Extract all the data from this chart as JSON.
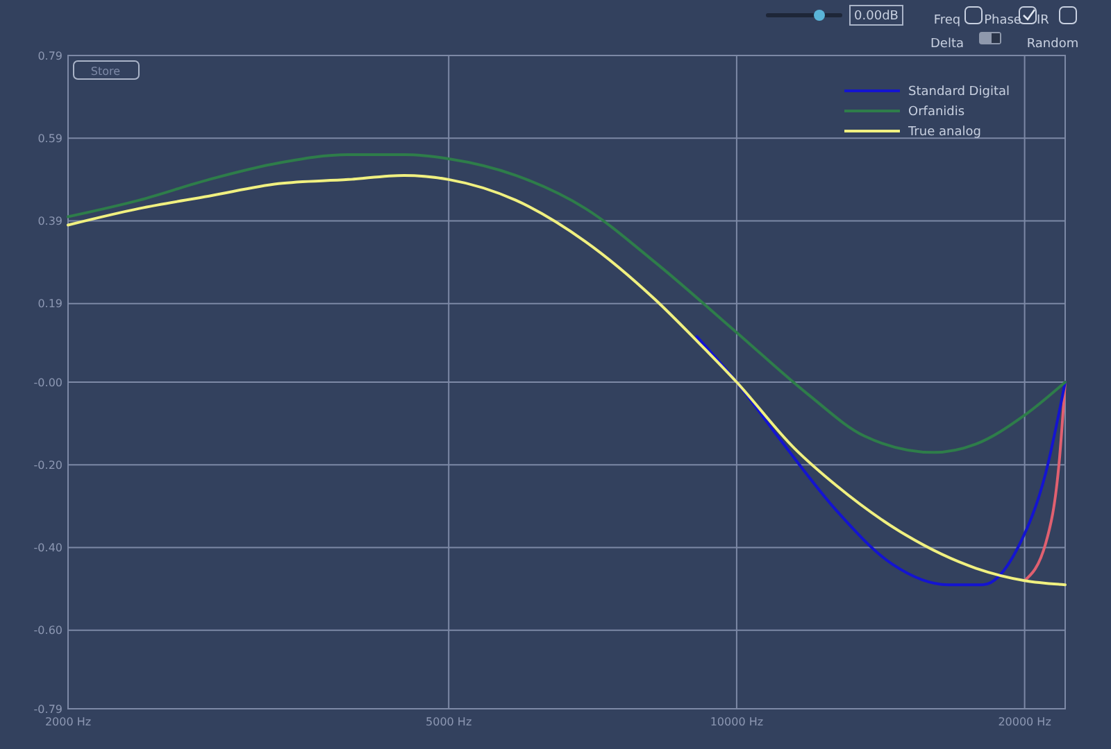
{
  "chart_data": {
    "type": "line",
    "log": "x",
    "grid": true,
    "legend": "top right",
    "line_style": "solid",
    "xlim": [
      2000,
      22050
    ],
    "xticks": [
      {
        "value": 2000,
        "label": "2000 Hz"
      },
      {
        "value": 5000,
        "label": "5000 Hz"
      },
      {
        "value": 10000,
        "label": "10000 Hz"
      },
      {
        "value": 20000,
        "label": "20000 Hz"
      }
    ],
    "ylim": [
      -0.79,
      0.79
    ],
    "yticks": [
      {
        "value": 0.79,
        "label": "0.79"
      },
      {
        "value": 0.59,
        "label": "0.59"
      },
      {
        "value": 0.39,
        "label": "0.39"
      },
      {
        "value": 0.19,
        "label": "0.19"
      },
      {
        "value": 0,
        "label": "-0.00"
      },
      {
        "value": -0.2,
        "label": "-0.20"
      },
      {
        "value": -0.4,
        "label": "-0.40"
      },
      {
        "value": -0.6,
        "label": "-0.60"
      },
      {
        "value": -0.79,
        "label": "-0.79"
      }
    ],
    "annotations": [
      "Store",
      "0.00dB",
      "Freq",
      "Phase",
      "IR",
      "Delta",
      "Random"
    ],
    "series": [
      {
        "color": "#e06070",
        "x": [
          20000,
          21040,
          21760,
          22050
        ],
        "values": [
          -0.48,
          -0.39,
          -0.18,
          0
        ]
      },
      {
        "name": "Standard Digital",
        "color": "#1414d0",
        "x": [
          9084,
          10000,
          11114,
          12710,
          14540,
          16630,
          18080,
          19680,
          21040,
          22050
        ],
        "values": [
          0.11,
          0,
          -0.14,
          -0.31,
          -0.44,
          -0.49,
          -0.49,
          -0.4,
          -0.22,
          0
        ]
      },
      {
        "name": "Orfanidis",
        "color": "#2e7d4a",
        "x": [
          2000,
          2374,
          2808,
          3320,
          3926,
          4491,
          5000,
          5875,
          6948,
          8216,
          10000,
          11880,
          13590,
          16080,
          17780,
          20000,
          22050
        ],
        "values": [
          0.4,
          0.44,
          0.49,
          0.53,
          0.55,
          0.55,
          0.54,
          0.5,
          0.42,
          0.29,
          0.12,
          -0.03,
          -0.13,
          -0.17,
          -0.15,
          -0.08,
          0
        ]
      },
      {
        "name": "True analog",
        "color": "#f0f080",
        "x": [
          2000,
          2374,
          2808,
          3320,
          3926,
          4491,
          5000,
          5875,
          6948,
          8216,
          9084,
          10000,
          11490,
          12710,
          15030,
          17780,
          20000,
          22050
        ],
        "values": [
          0.38,
          0.42,
          0.45,
          0.48,
          0.49,
          0.5,
          0.49,
          0.44,
          0.34,
          0.2,
          0.1,
          0,
          -0.16,
          -0.25,
          -0.37,
          -0.45,
          -0.48,
          -0.49
        ]
      }
    ]
  }
}
